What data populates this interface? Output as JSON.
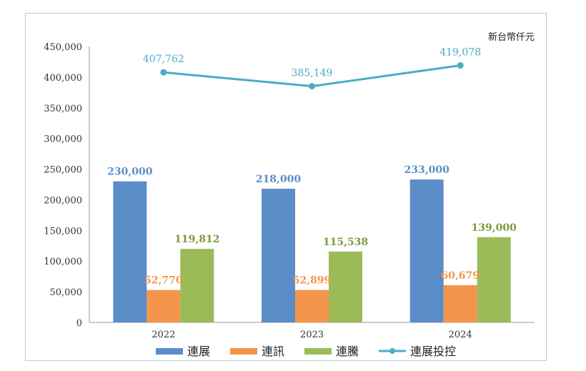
{
  "chart_data": {
    "type": "bar",
    "unit_label": "新台幣仟元",
    "categories": [
      "2022",
      "2023",
      "2024"
    ],
    "ylim": [
      0,
      450000
    ],
    "yticks": [
      "0",
      "50,000",
      "100,000",
      "150,000",
      "200,000",
      "250,000",
      "300,000",
      "350,000",
      "400,000",
      "450,000"
    ],
    "ytick_values": [
      0,
      50000,
      100000,
      150000,
      200000,
      250000,
      300000,
      350000,
      400000,
      450000
    ],
    "grid": false,
    "legend_position": "bottom",
    "series": [
      {
        "name": "連展",
        "kind": "bar",
        "color": "#5b8dc9",
        "label_color": "#5b8dc9",
        "values": [
          230000,
          218000,
          233000
        ],
        "labels": [
          "230,000",
          "218,000",
          "233,000"
        ]
      },
      {
        "name": "連訊",
        "kind": "bar",
        "color": "#f3954a",
        "label_color": "#f3954a",
        "values": [
          52770,
          52899,
          60679
        ],
        "labels": [
          "52,770",
          "52,899",
          "60,679"
        ]
      },
      {
        "name": "連騰",
        "kind": "bar",
        "color": "#9bbb59",
        "label_color": "#7d9a3a",
        "values": [
          119812,
          115538,
          139000
        ],
        "labels": [
          "119,812",
          "115,538",
          "139,000"
        ]
      },
      {
        "name": "連展投控",
        "kind": "line",
        "color": "#4aacc6",
        "label_color": "#4aacc6",
        "values": [
          407762,
          385149,
          419078
        ],
        "labels": [
          "407,762",
          "385,149",
          "419,078"
        ]
      }
    ]
  }
}
